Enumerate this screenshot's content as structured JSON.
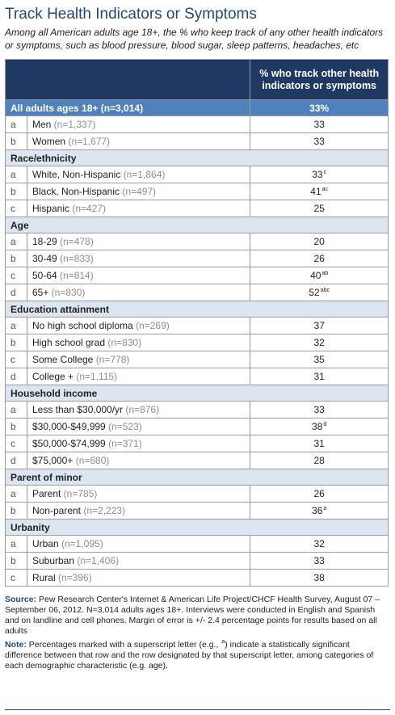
{
  "title": "Track Health Indicators or Symptoms",
  "subtitle": "Among all American adults age 18+, the % who keep track of any other health indicators or symptoms, such as blood pressure, blood sugar, sleep patterns, headaches, etc",
  "table": {
    "column_header": "% who track other health indicators or symptoms",
    "total": {
      "label": "All adults ages 18+ (n=3,014)",
      "value": "33%"
    },
    "rows": [
      {
        "type": "row",
        "letter": "a",
        "label": "Men",
        "n": "(n=1,337)",
        "value": "33",
        "sup": ""
      },
      {
        "type": "row",
        "letter": "b",
        "label": "Women",
        "n": "(n=1,677)",
        "value": "33",
        "sup": ""
      },
      {
        "type": "section",
        "label": "Race/ethnicity"
      },
      {
        "type": "row",
        "letter": "a",
        "label": "White, Non-Hispanic",
        "n": "(n=1,864)",
        "value": "33",
        "sup": "c"
      },
      {
        "type": "row",
        "letter": "b",
        "label": "Black, Non-Hispanic",
        "n": "(n=497)",
        "value": "41",
        "sup": "ac"
      },
      {
        "type": "row",
        "letter": "c",
        "label": "Hispanic",
        "n": "(n=427)",
        "value": "25",
        "sup": ""
      },
      {
        "type": "section",
        "label": "Age"
      },
      {
        "type": "row",
        "letter": "a",
        "label": "18-29",
        "n": "(n=478)",
        "value": "20",
        "sup": ""
      },
      {
        "type": "row",
        "letter": "b",
        "label": "30-49",
        "n": "(n=833)",
        "value": "26",
        "sup": ""
      },
      {
        "type": "row",
        "letter": "c",
        "label": "50-64",
        "n": "(n=814)",
        "value": "40",
        "sup": "ab"
      },
      {
        "type": "row",
        "letter": "d",
        "label": "65+",
        "n": "(n=830)",
        "value": "52",
        "sup": "abc"
      },
      {
        "type": "section",
        "label": "Education attainment"
      },
      {
        "type": "row",
        "letter": "a",
        "label": "No high school diploma",
        "n": "(n=269)",
        "value": "37",
        "sup": ""
      },
      {
        "type": "row",
        "letter": "b",
        "label": "High school grad",
        "n": "(n=830)",
        "value": "32",
        "sup": ""
      },
      {
        "type": "row",
        "letter": "c",
        "label": "Some College",
        "n": "(n=778)",
        "value": "35",
        "sup": ""
      },
      {
        "type": "row",
        "letter": "d",
        "label": "College +",
        "n": "(n=1,115)",
        "value": "31",
        "sup": ""
      },
      {
        "type": "section",
        "label": "Household income"
      },
      {
        "type": "row",
        "letter": "a",
        "label": "Less than $30,000/yr",
        "n": "(n=876)",
        "value": "33",
        "sup": ""
      },
      {
        "type": "row",
        "letter": "b",
        "label": "$30,000-$49,999",
        "n": "(n=523)",
        "value": "38",
        "sup": "d"
      },
      {
        "type": "row",
        "letter": "c",
        "label": "$50,000-$74,999",
        "n": "(n=371)",
        "value": "31",
        "sup": ""
      },
      {
        "type": "row",
        "letter": "d",
        "label": "$75,000+",
        "n": "(n=680)",
        "value": "28",
        "sup": ""
      },
      {
        "type": "section",
        "label": "Parent of minor"
      },
      {
        "type": "row",
        "letter": "a",
        "label": "Parent",
        "n": "(n=785)",
        "value": "26",
        "sup": ""
      },
      {
        "type": "row",
        "letter": "b",
        "label": "Non-parent",
        "n": "(n=2,223)",
        "value": "36",
        "sup": "a"
      },
      {
        "type": "section",
        "label": "Urbanity"
      },
      {
        "type": "row",
        "letter": "a",
        "label": "Urban",
        "n": "(n=1,095)",
        "value": "32",
        "sup": ""
      },
      {
        "type": "row",
        "letter": "b",
        "label": "Suburban",
        "n": "(n=1,406)",
        "value": "33",
        "sup": ""
      },
      {
        "type": "row",
        "letter": "c",
        "label": "Rural",
        "n": "(n=396)",
        "value": "38",
        "sup": ""
      }
    ]
  },
  "source": {
    "label": "Source:",
    "text": "Pew Research Center's Internet & American Life Project/CHCF Health Survey, August 07 – September 06, 2012. N=3,014 adults ages 18+. Interviews were conducted in English and Spanish and on landline and cell phones.  Margin of error is +/- 2.4 percentage points for results based on all adults"
  },
  "note": {
    "label": "Note:",
    "text_before": "Percentages marked with a superscript letter (e.g., ",
    "example_sup": "a",
    "text_after": ") indicate a statistically significant difference between that row and the row designated by that superscript letter, among categories of each demographic characteristic (e.g. age)."
  },
  "colors": {
    "title": "#1f497d",
    "header_bg": "#1f3864",
    "total_bg": "#4f81bd",
    "section_bg": "#dce6f1"
  }
}
